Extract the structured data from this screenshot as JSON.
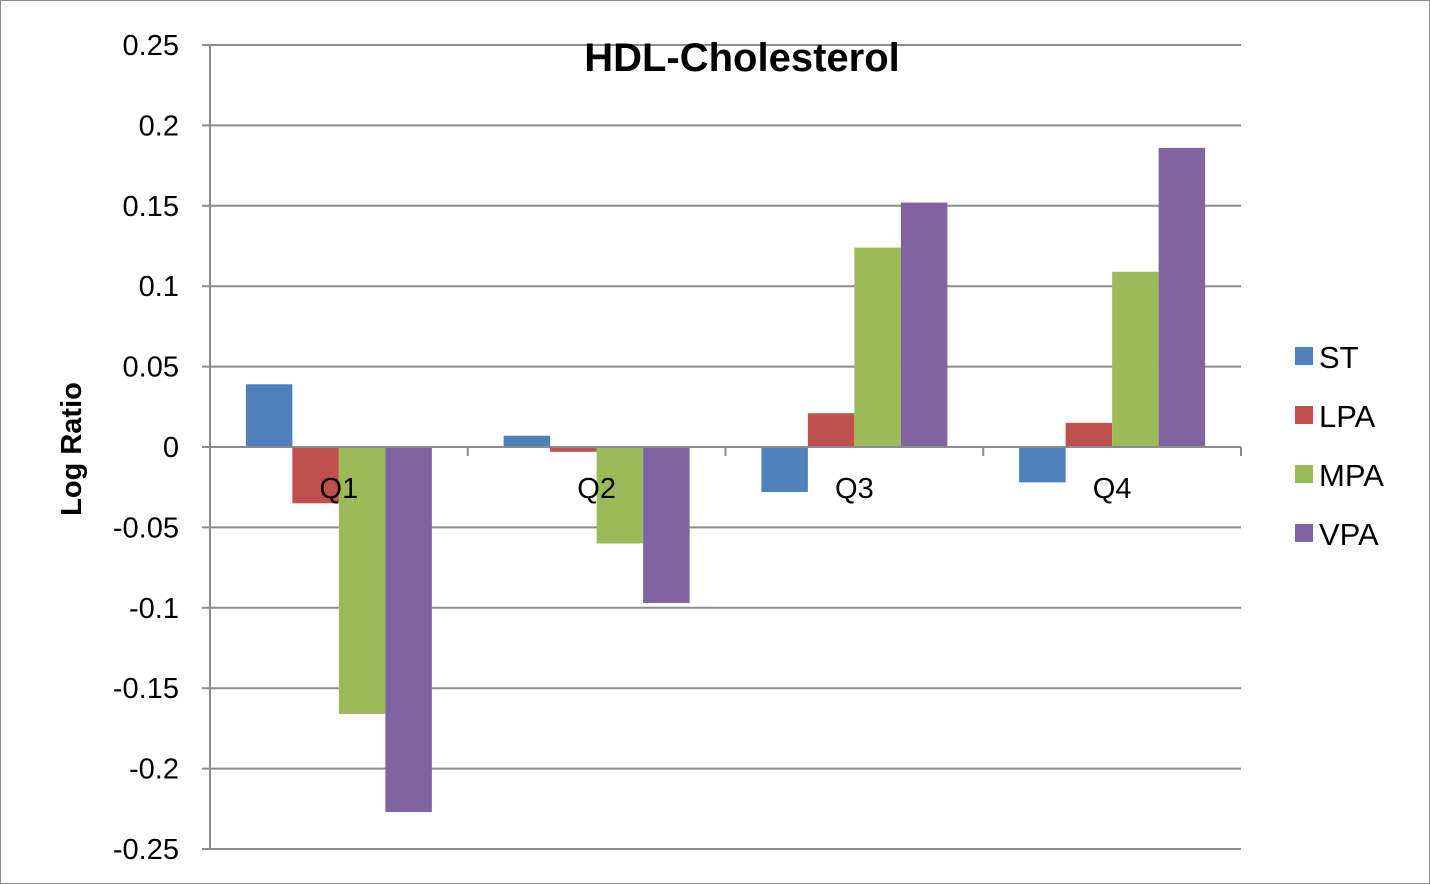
{
  "chart_data": {
    "type": "bar",
    "title": "HDL-Cholesterol",
    "xlabel": "",
    "ylabel": "Log Ratio",
    "ylim": [
      -0.25,
      0.25
    ],
    "yticks": [
      0.25,
      0.2,
      0.15,
      0.1,
      0.05,
      0,
      -0.05,
      -0.1,
      -0.15,
      -0.2,
      -0.25
    ],
    "ytick_labels": [
      "0.25",
      "0.2",
      "0.15",
      "0.1",
      "0.05",
      "0",
      "-0.05",
      "-0.1",
      "-0.15",
      "-0.2",
      "-0.25"
    ],
    "categories": [
      "Q1",
      "Q2",
      "Q3",
      "Q4"
    ],
    "series": [
      {
        "name": "ST",
        "color": "#4f81bd",
        "values": [
          0.039,
          0.007,
          -0.028,
          -0.022
        ]
      },
      {
        "name": "LPA",
        "color": "#c0504d",
        "values": [
          -0.035,
          -0.003,
          0.021,
          0.015
        ]
      },
      {
        "name": "MPA",
        "color": "#9bbb59",
        "values": [
          -0.166,
          -0.06,
          0.124,
          0.109
        ]
      },
      {
        "name": "VPA",
        "color": "#8064a2",
        "values": [
          -0.227,
          -0.097,
          0.152,
          0.186
        ]
      }
    ],
    "grid": true,
    "legend_position": "right"
  }
}
